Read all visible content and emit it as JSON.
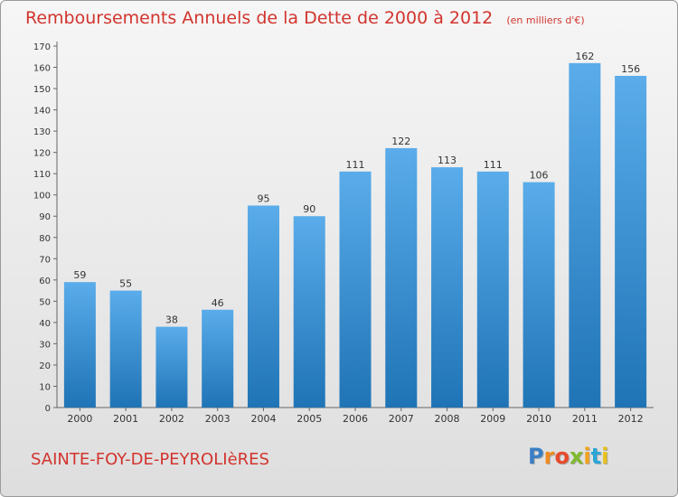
{
  "header": {
    "title": "Remboursements Annuels de la Dette de 2000 à 2012",
    "unit": "(en milliers d'€)"
  },
  "footer": {
    "commune": "SAINTE-FOY-DE-PEYROLIèRES",
    "logo_letters": [
      "P",
      "r",
      "o",
      "x",
      "i",
      "t",
      "i"
    ]
  },
  "colors": {
    "title": "#d2342e",
    "bar_top": "#5aacea",
    "bar_bottom": "#1f74b6",
    "logo": [
      "#3a7ec4",
      "#f08a1c",
      "#e84a2c",
      "#7fba2d",
      "#f2a21a",
      "#2aa6d6",
      "#e8c21c"
    ]
  },
  "chart_data": {
    "type": "bar",
    "title": "Remboursements Annuels de la Dette de 2000 à 2012",
    "unit": "(en milliers d'€)",
    "xlabel": "",
    "ylabel": "",
    "categories": [
      "2000",
      "2001",
      "2002",
      "2003",
      "2004",
      "2005",
      "2006",
      "2007",
      "2008",
      "2009",
      "2010",
      "2011",
      "2012"
    ],
    "values": [
      59,
      55,
      38,
      46,
      95,
      90,
      111,
      122,
      113,
      111,
      106,
      162,
      156
    ],
    "ylim": [
      0,
      170
    ],
    "yticks": [
      0,
      10,
      20,
      30,
      40,
      50,
      60,
      70,
      80,
      90,
      100,
      110,
      120,
      130,
      140,
      150,
      160,
      170
    ],
    "grid": false,
    "data_labels": true
  }
}
